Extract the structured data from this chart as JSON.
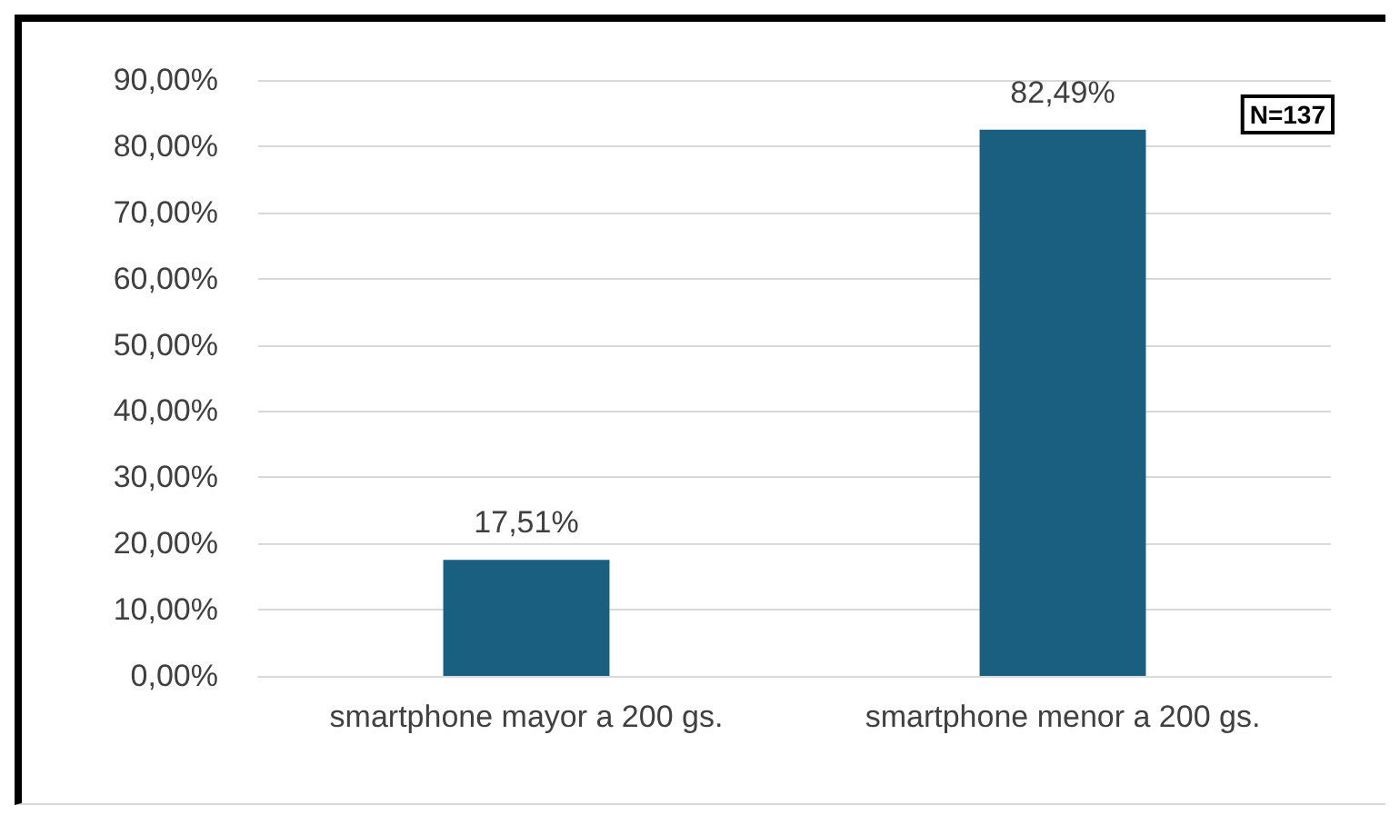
{
  "chart_data": {
    "type": "bar",
    "categories": [
      "smartphone mayor a 200 gs.",
      "smartphone menor a 200 gs."
    ],
    "values": [
      17.51,
      82.49
    ],
    "color": "#1a5e80",
    "value_labels": [
      "17,51%",
      "82,49%"
    ],
    "ylim": [
      0,
      90
    ],
    "yticks": [
      {
        "value": 0,
        "label": "0,00%"
      },
      {
        "value": 10,
        "label": "10,00%"
      },
      {
        "value": 20,
        "label": "20,00%"
      },
      {
        "value": 30,
        "label": "30,00%"
      },
      {
        "value": 40,
        "label": "40,00%"
      },
      {
        "value": 50,
        "label": "50,00%"
      },
      {
        "value": 60,
        "label": "60,00%"
      },
      {
        "value": 70,
        "label": "70,00%"
      },
      {
        "value": 80,
        "label": "80,00%"
      },
      {
        "value": 90,
        "label": "90,00%"
      }
    ],
    "grid": "y",
    "annotations": [
      "N=137"
    ]
  }
}
